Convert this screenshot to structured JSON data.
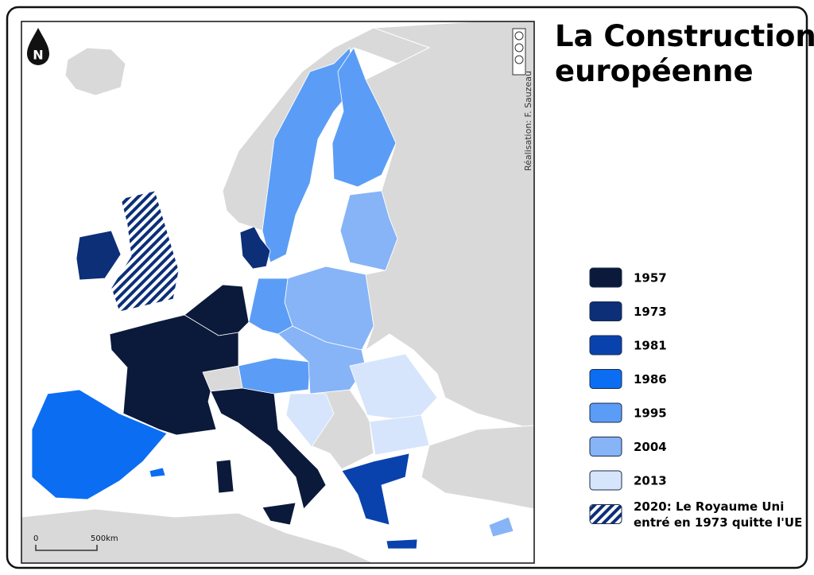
{
  "title": "La Construction européenne",
  "north": "N",
  "credit": "Réalisation: F. Sauzeau",
  "scale": {
    "start": "0",
    "end": "500km"
  },
  "legend": {
    "items": [
      {
        "label": "1957",
        "color": "#0b1a3a"
      },
      {
        "label": "1973",
        "color": "#0c2f78"
      },
      {
        "label": "1981",
        "color": "#0a42ad"
      },
      {
        "label": "1986",
        "color": "#0b6df2"
      },
      {
        "label": "1995",
        "color": "#5b9df6"
      },
      {
        "label": "2004",
        "color": "#86b4f6"
      },
      {
        "label": "2013",
        "color": "#d6e5fb"
      },
      {
        "label_lines": [
          "2020: Le Royaume Uni",
          "entré en 1973 quitte l'UE"
        ],
        "pattern": "hatch"
      }
    ]
  }
}
